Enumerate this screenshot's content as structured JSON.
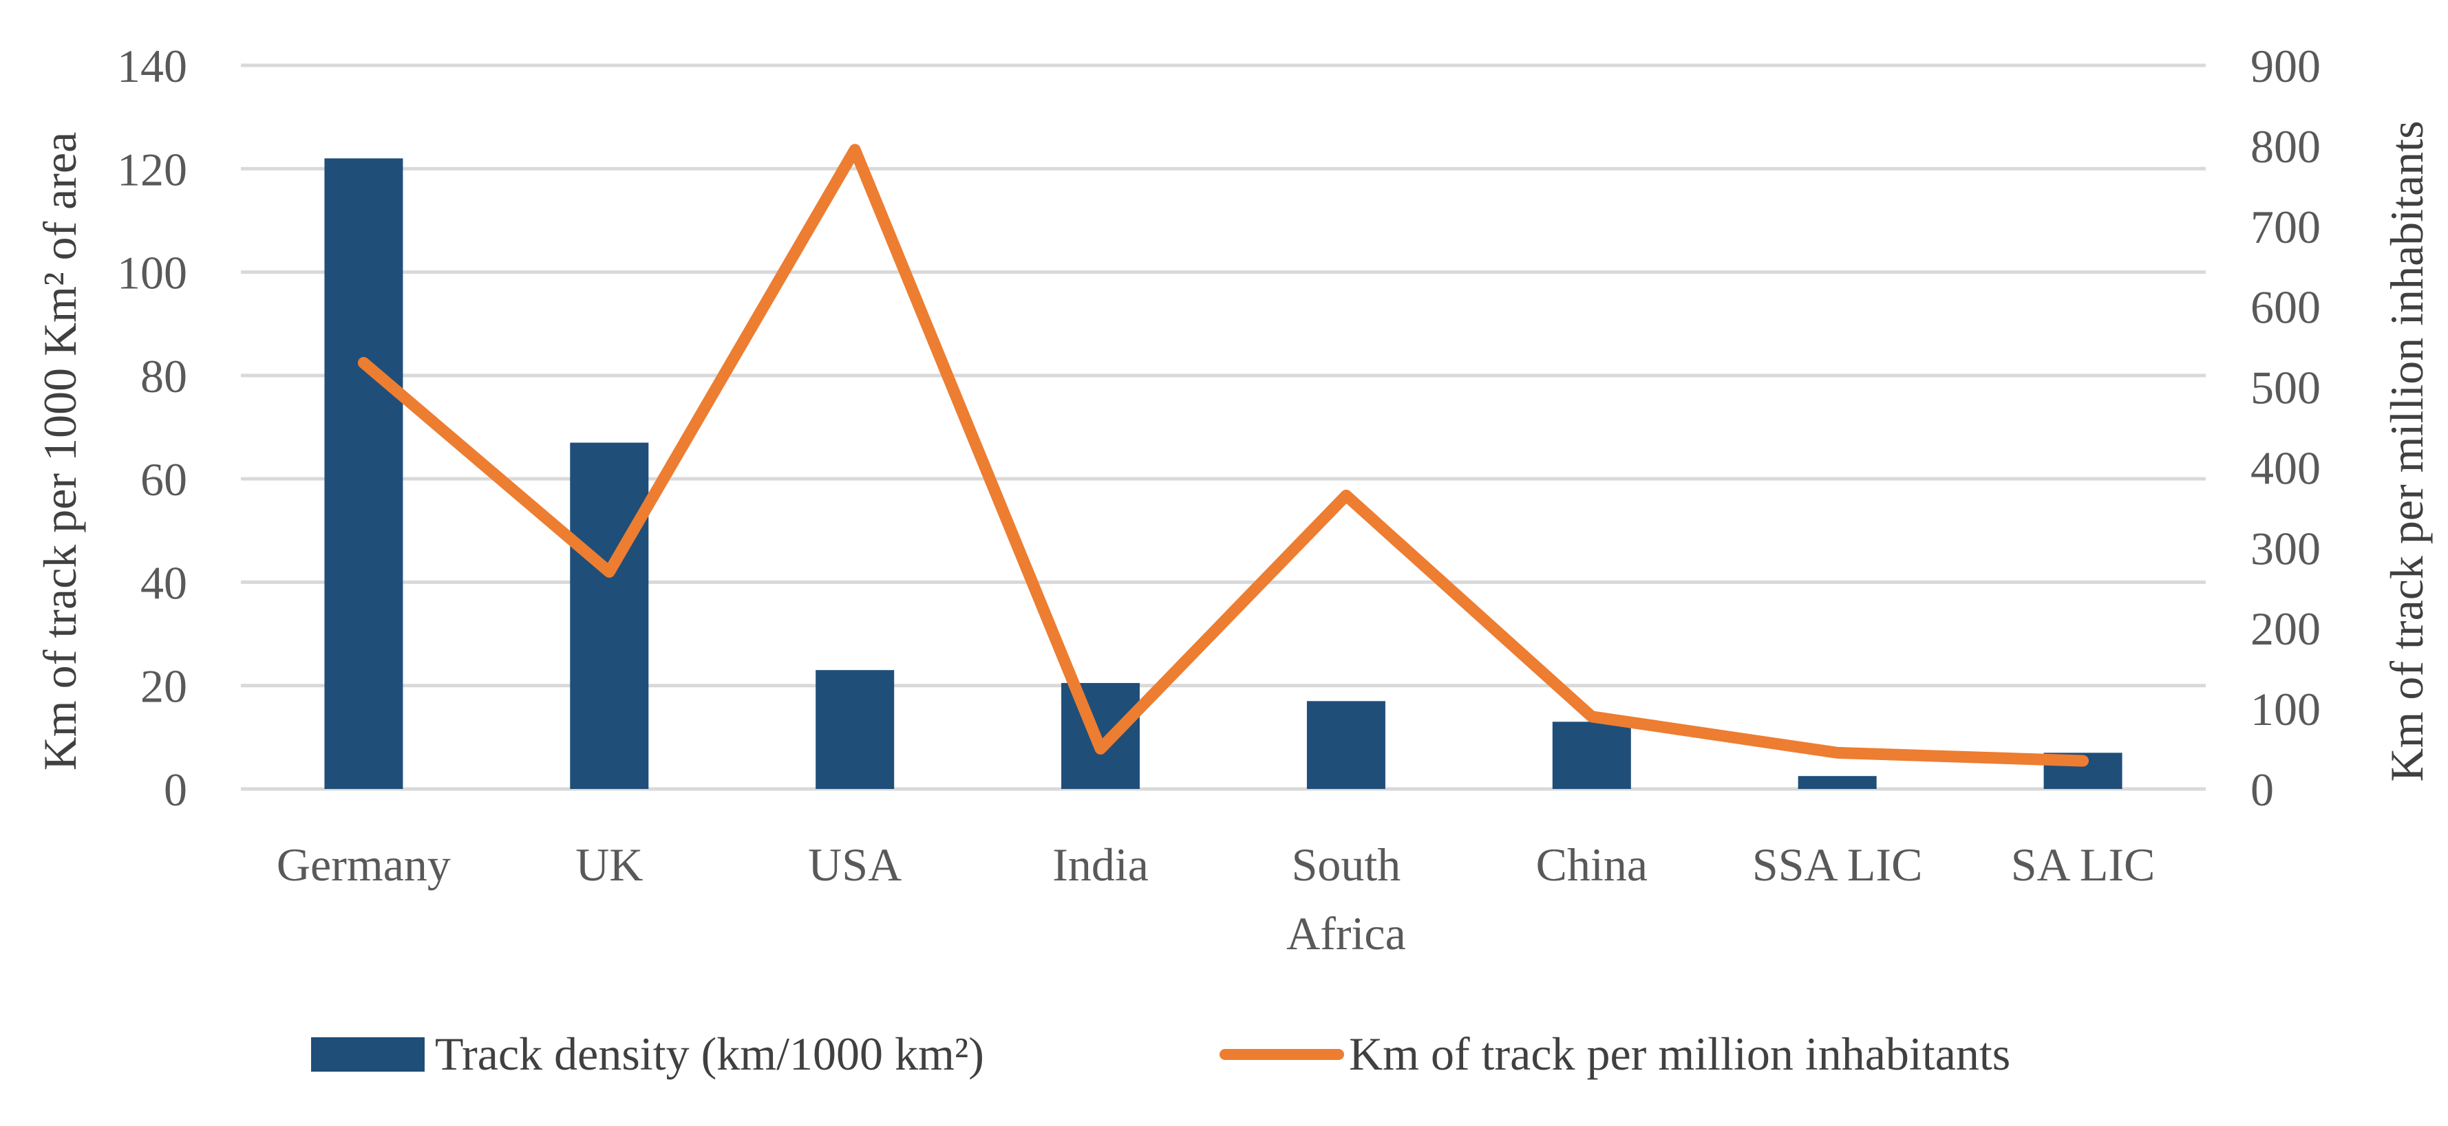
{
  "chart_data": {
    "type": "bar",
    "categories": [
      "Germany",
      "UK",
      "USA",
      "India",
      "South Africa",
      "China",
      "SSA LIC",
      "SA LIC"
    ],
    "category_label_lines": [
      [
        "Germany"
      ],
      [
        "UK"
      ],
      [
        "USA"
      ],
      [
        "India"
      ],
      [
        "South",
        "Africa"
      ],
      [
        "China"
      ],
      [
        "SSA LIC"
      ],
      [
        "SA LIC"
      ]
    ],
    "series": [
      {
        "name": "Track density (km/1000 km²)",
        "type": "bar",
        "axis": "left",
        "color": "#1f4e79",
        "values": [
          122,
          67,
          23,
          20.5,
          17,
          13,
          2.5,
          7
        ]
      },
      {
        "name": "Km of track per million inhabitants",
        "type": "line",
        "axis": "right",
        "color": "#ed7d31",
        "values": [
          530,
          270,
          795,
          50,
          365,
          90,
          45,
          35
        ]
      }
    ],
    "ylabel": "Km of track per 1000 Km² of area",
    "y2label": "Km of track per million inhabitants",
    "ylim": [
      0,
      140
    ],
    "y2lim": [
      0,
      900
    ],
    "yticks": [
      0,
      20,
      40,
      60,
      80,
      100,
      120,
      140
    ],
    "y2ticks": [
      0,
      100,
      200,
      300,
      400,
      500,
      600,
      700,
      800,
      900
    ],
    "grid": true,
    "legend_position": "bottom"
  }
}
